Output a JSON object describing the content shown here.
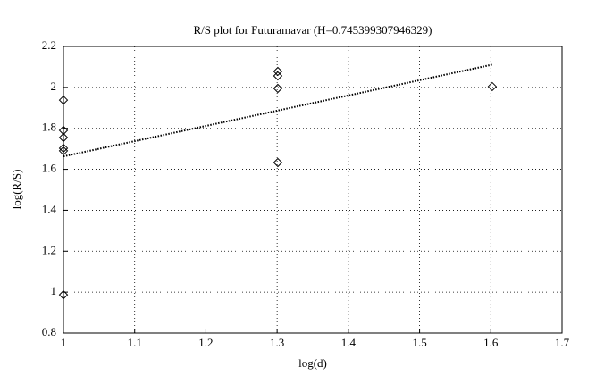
{
  "chart_data": {
    "type": "scatter",
    "title": "R/S plot for Futuramavar (H=0.745399307946329)",
    "xlabel": "log(d)",
    "ylabel": "log(R/S)",
    "series": [
      {
        "color": "#000000",
        "marker": "diamond",
        "x": [
          1,
          1,
          1,
          1,
          1,
          1,
          1.301,
          1.301,
          1.301,
          1.301,
          1.602
        ],
        "values": [
          1.938,
          1.79,
          1.755,
          1.703,
          1.69,
          0.987,
          2.078,
          2.056,
          1.995,
          1.633,
          2.004
        ]
      },
      {
        "color": "#000000",
        "line_style": "dotted",
        "x": [
          1,
          1.602
        ],
        "values": [
          1.663,
          2.111
        ]
      }
    ],
    "xlim": [
      1,
      1.7
    ],
    "xticks": [
      1,
      1.1,
      1.2,
      1.3,
      1.4,
      1.5,
      1.6,
      1.7
    ],
    "ylim": [
      0.8,
      2.2
    ],
    "yticks": [
      0.8,
      1,
      1.2,
      1.4,
      1.6,
      1.8,
      2,
      2.2
    ],
    "grid": true
  }
}
